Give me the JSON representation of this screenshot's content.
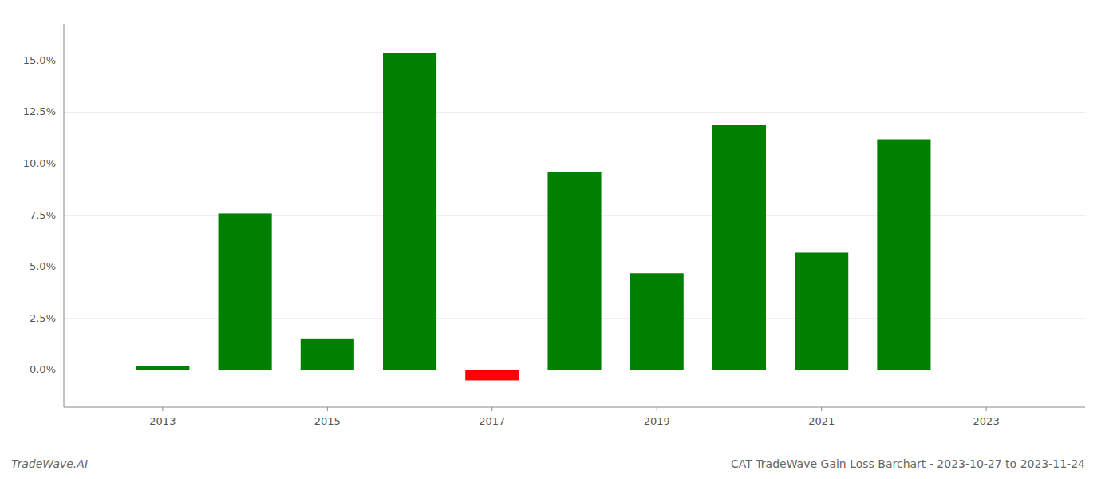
{
  "chart_data": {
    "type": "bar",
    "title": "CAT TradeWave Gain Loss Barchart - 2023-10-27 to 2023-11-24",
    "annotations": [
      "TradeWave.AI"
    ],
    "x": [
      2013,
      2014,
      2015,
      2016,
      2017,
      2018,
      2019,
      2020,
      2021,
      2022
    ],
    "values": [
      0.002,
      0.076,
      0.015,
      0.154,
      -0.005,
      0.096,
      0.047,
      0.119,
      0.057,
      0.112
    ],
    "colors": [
      "#008000",
      "#008000",
      "#008000",
      "#008000",
      "#ff0000",
      "#008000",
      "#008000",
      "#008000",
      "#008000",
      "#008000"
    ],
    "xlim": [
      2011.8,
      2024.2
    ],
    "xticks": [
      2013,
      2015,
      2017,
      2019,
      2021,
      2023
    ],
    "ylim": [
      -0.018,
      0.168
    ],
    "yticks": [
      {
        "value": 0.0,
        "label": "0.0%"
      },
      {
        "value": 0.025,
        "label": "2.5%"
      },
      {
        "value": 0.05,
        "label": "5.0%"
      },
      {
        "value": 0.075,
        "label": "7.5%"
      },
      {
        "value": 0.1,
        "label": "10.0%"
      },
      {
        "value": 0.125,
        "label": "12.5%"
      },
      {
        "value": 0.15,
        "label": "15.0%"
      }
    ],
    "grid": true
  }
}
